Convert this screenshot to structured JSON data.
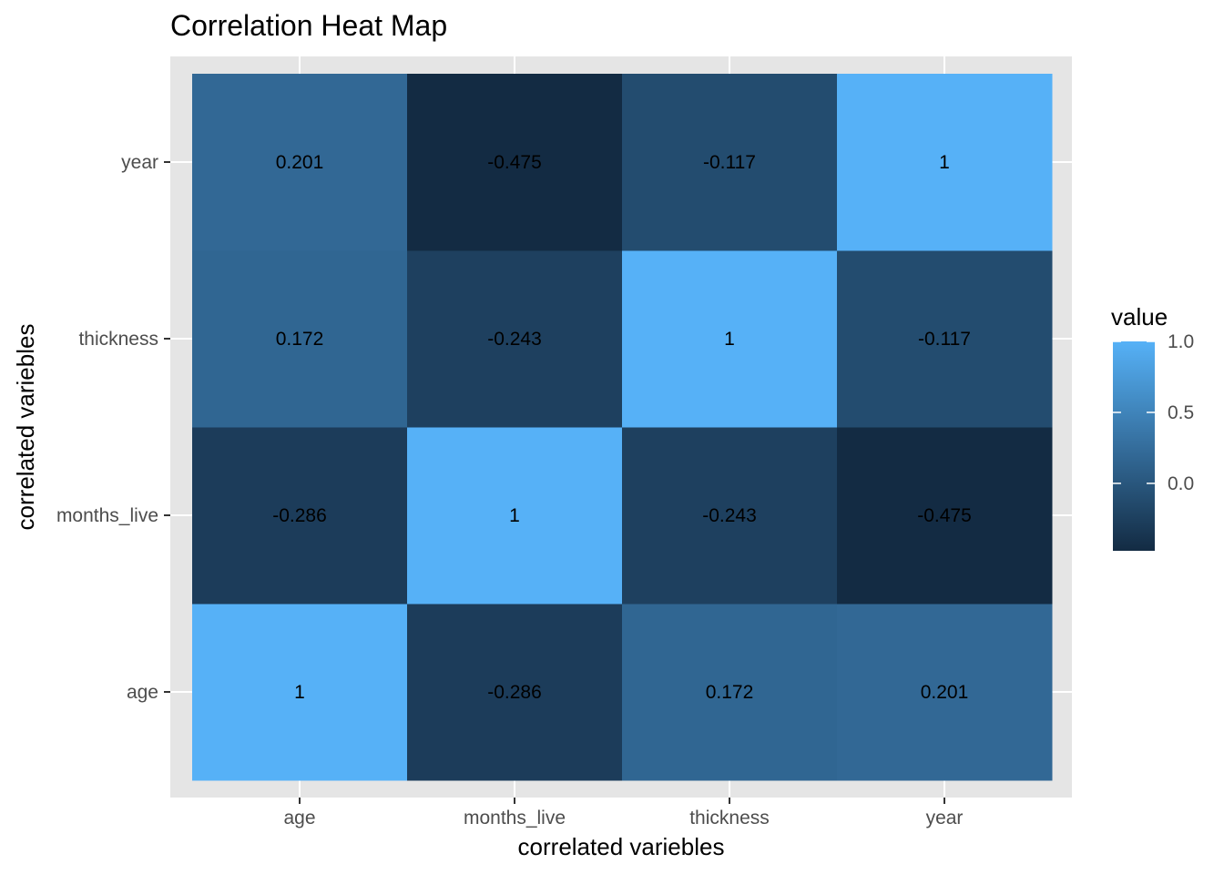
{
  "chart_data": {
    "type": "heatmap",
    "title": "Correlation Heat Map",
    "xlabel": "correlated variebles",
    "ylabel": "correlated variebles",
    "x_categories": [
      "age",
      "months_live",
      "thickness",
      "year"
    ],
    "y_categories": [
      "age",
      "months_live",
      "thickness",
      "year"
    ],
    "values": [
      [
        1,
        -0.286,
        0.172,
        0.201
      ],
      [
        -0.286,
        1,
        -0.243,
        -0.475
      ],
      [
        0.172,
        -0.243,
        1,
        -0.117
      ],
      [
        0.201,
        -0.475,
        -0.117,
        1
      ]
    ],
    "cell_labels": [
      [
        "1",
        "-0.286",
        "0.172",
        "0.201"
      ],
      [
        "-0.286",
        "1",
        "-0.243",
        "-0.475"
      ],
      [
        "0.172",
        "-0.243",
        "1",
        "-0.117"
      ],
      [
        "0.201",
        "-0.475",
        "-0.117",
        "1"
      ]
    ],
    "legend": {
      "title": "value",
      "placement": "right",
      "ticks": [
        1.0,
        0.5,
        0.0
      ],
      "tick_labels": [
        "1.0",
        "0.5",
        "0.0"
      ],
      "range": [
        -0.475,
        1
      ],
      "color_low": "#132b43",
      "color_high": "#56b1f7"
    },
    "grid": true,
    "colors": {
      "panel_background": "#e5e5e5",
      "grid_line": "#ffffff"
    }
  }
}
